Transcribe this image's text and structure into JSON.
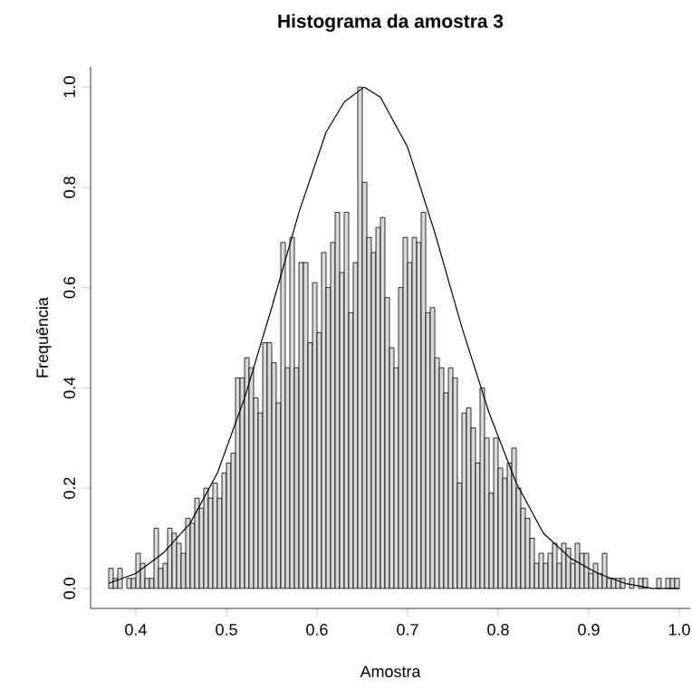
{
  "chart_data": {
    "type": "histogram",
    "title": "Histograma da amostra 3",
    "xlabel": "Amostra",
    "ylabel": "Frequência",
    "xlim": [
      0.35,
      1.012
    ],
    "ylim": [
      -0.04,
      1.04
    ],
    "xticks": [
      0.4,
      0.5,
      0.6,
      0.7,
      0.8,
      0.9,
      {
        "value": 1,
        "label": "1.0"
      }
    ],
    "yticks": [
      {
        "value": 0,
        "label": "0.0"
      },
      0.2,
      0.4,
      0.6,
      0.8,
      {
        "value": 1,
        "label": "1.0"
      }
    ],
    "series": [
      {
        "color": "#d9d9d9",
        "bins": [
          0.37,
          0.375,
          0.38,
          0.385,
          0.39,
          0.395,
          0.4,
          0.405,
          0.41,
          0.415,
          0.42,
          0.425,
          0.43,
          0.435,
          0.44,
          0.445,
          0.45,
          0.455,
          0.46,
          0.465,
          0.47,
          0.475,
          0.48,
          0.485,
          0.49,
          0.495,
          0.5,
          0.505,
          0.51,
          0.515,
          0.52,
          0.525,
          0.53,
          0.535,
          0.54,
          0.545,
          0.55,
          0.555,
          0.56,
          0.565,
          0.57,
          0.575,
          0.58,
          0.585,
          0.59,
          0.595,
          0.6,
          0.605,
          0.61,
          0.615,
          0.62,
          0.625,
          0.63,
          0.635,
          0.64,
          0.645,
          0.65,
          0.655,
          0.66,
          0.665,
          0.67,
          0.675,
          0.68,
          0.685,
          0.69,
          0.695,
          0.7,
          0.705,
          0.71,
          0.715,
          0.72,
          0.725,
          0.73,
          0.735,
          0.74,
          0.745,
          0.75,
          0.755,
          0.76,
          0.765,
          0.77,
          0.775,
          0.78,
          0.785,
          0.79,
          0.795,
          0.8,
          0.805,
          0.81,
          0.815,
          0.82,
          0.825,
          0.83,
          0.835,
          0.84,
          0.845,
          0.85,
          0.855,
          0.86,
          0.865,
          0.87,
          0.875,
          0.88,
          0.885,
          0.89,
          0.895,
          0.9,
          0.905,
          0.91,
          0.915,
          0.92,
          0.925,
          0.93,
          0.935,
          0.94,
          0.945,
          0.95,
          0.955,
          0.96,
          0.965,
          0.97,
          0.975,
          0.98,
          0.985,
          0.99,
          0.995,
          1.0
        ],
        "values": [
          0.04,
          0.02,
          0.04,
          null,
          0.02,
          0.02,
          0.07,
          0.05,
          0.02,
          0.02,
          0.12,
          0.04,
          0.05,
          0.12,
          0.11,
          0.09,
          0.07,
          0.14,
          0.13,
          0.18,
          0.16,
          0.2,
          0.18,
          0.21,
          0.18,
          0.23,
          0.25,
          0.27,
          0.42,
          0.42,
          0.46,
          0.44,
          0.38,
          0.35,
          0.49,
          0.49,
          0.45,
          0.37,
          0.69,
          0.44,
          0.7,
          0.44,
          0.65,
          0.65,
          0.49,
          0.61,
          0.51,
          0.67,
          0.6,
          0.69,
          0.75,
          0.63,
          0.75,
          0.55,
          0.65,
          1.0,
          0.81,
          0.7,
          0.67,
          0.72,
          0.74,
          0.58,
          0.48,
          0.44,
          0.6,
          0.7,
          0.65,
          0.7,
          0.69,
          0.75,
          0.55,
          0.56,
          0.46,
          0.44,
          0.39,
          0.44,
          0.42,
          0.21,
          0.35,
          0.36,
          0.32,
          0.25,
          0.4,
          0.3,
          0.19,
          0.3,
          0.24,
          0.22,
          0.25,
          0.28,
          0.2,
          0.16,
          0.14,
          0.1,
          0.05,
          0.07,
          0.05,
          0.07,
          0.09,
          0.05,
          0.09,
          0.08,
          0.05,
          0.09,
          0.07,
          0.07,
          0.03,
          0.05,
          0.03,
          0.07,
          0.02,
          0.02,
          0.02,
          0.02,
          null,
          0.02,
          null,
          0.02,
          0.02,
          null,
          null,
          0.02,
          null,
          0.02,
          0.02,
          0.02
        ]
      },
      {
        "type": "line",
        "color": "#000000",
        "x": [
          0.37,
          0.4,
          0.43,
          0.46,
          0.49,
          0.52,
          0.55,
          0.58,
          0.61,
          0.63,
          0.652,
          0.67,
          0.7,
          0.73,
          0.76,
          0.79,
          0.82,
          0.85,
          0.88,
          0.91,
          0.94,
          0.97,
          1.0
        ],
        "values": [
          0.01,
          0.03,
          0.07,
          0.13,
          0.23,
          0.38,
          0.56,
          0.75,
          0.91,
          0.97,
          1.0,
          0.98,
          0.88,
          0.71,
          0.52,
          0.35,
          0.21,
          0.11,
          0.06,
          0.03,
          0.01,
          0.0,
          0.0
        ]
      }
    ]
  }
}
